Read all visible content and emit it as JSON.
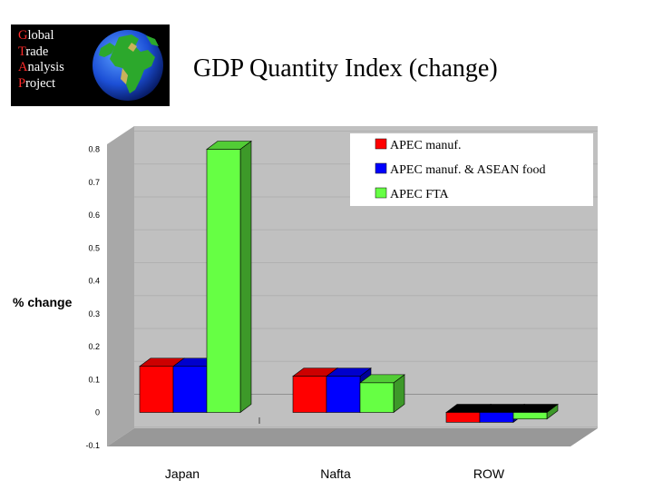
{
  "logo": {
    "lines": [
      {
        "first": "G",
        "rest": "lobal"
      },
      {
        "first": "T",
        "rest": "rade"
      },
      {
        "first": "A",
        "rest": "nalysis"
      },
      {
        "first": "P",
        "rest": "roject"
      }
    ]
  },
  "slide_title": "GDP Quantity Index (change)",
  "chart_data": {
    "type": "bar",
    "categories": [
      "Japan",
      "Nafta",
      "ROW"
    ],
    "series": [
      {
        "name": "APEC manuf.",
        "values": [
          0.14,
          0.11,
          -0.03
        ],
        "color": "#ff0000"
      },
      {
        "name": "APEC manuf. & ASEAN food",
        "values": [
          0.14,
          0.11,
          -0.03
        ],
        "color": "#0000ff"
      },
      {
        "name": "APEC FTA",
        "values": [
          0.8,
          0.09,
          -0.02
        ],
        "color": "#66ff44"
      }
    ],
    "title": "",
    "xlabel": "",
    "ylabel": "% change",
    "ylim": [
      -0.1,
      0.8
    ],
    "yticks": [
      "-0.1",
      "0",
      "0.1",
      "0.2",
      "0.3",
      "0.4",
      "0.5",
      "0.6",
      "0.7",
      "0.8"
    ],
    "grid": true,
    "legend_position": "top-right"
  }
}
